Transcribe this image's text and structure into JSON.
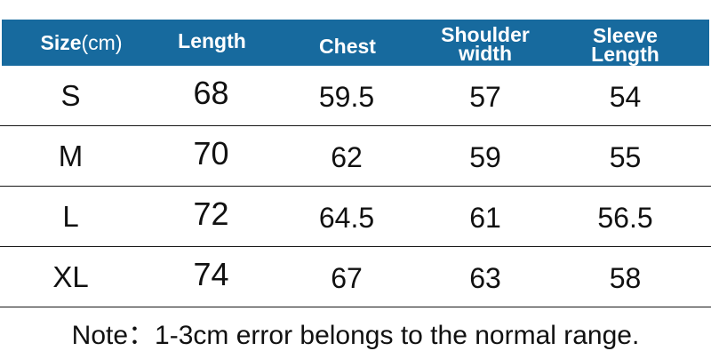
{
  "colors": {
    "header_bg": "#176A9E",
    "header_text": "#FFFFFF",
    "body_text": "#111111",
    "separator": "#161616",
    "background": "#FFFFFF"
  },
  "header": {
    "col1": {
      "main": "Size",
      "suffix": "(cm)"
    },
    "col2": "Length",
    "col3": "Chest",
    "col4": {
      "line1": "Shoulder",
      "line2": "width"
    },
    "col5": {
      "line1": "Sleeve",
      "line2": "Length"
    }
  },
  "note": "Note：1-3cm error belongs to the normal range.",
  "chart_data": {
    "type": "table",
    "title": "Garment size chart (cm)",
    "columns": [
      "Size(cm)",
      "Length",
      "Chest",
      "Shoulder width",
      "Sleeve Length"
    ],
    "rows": [
      [
        "S",
        "68",
        "59.5",
        "57",
        "54"
      ],
      [
        "M",
        "70",
        "62",
        "59",
        "55"
      ],
      [
        "L",
        "72",
        "64.5",
        "61",
        "56.5"
      ],
      [
        "XL",
        "74",
        "67",
        "63",
        "58"
      ]
    ],
    "note": "Note：1-3cm error belongs to the normal range.",
    "layout": {
      "grid": false,
      "header_style": "blue-band",
      "row_separators": true
    }
  }
}
